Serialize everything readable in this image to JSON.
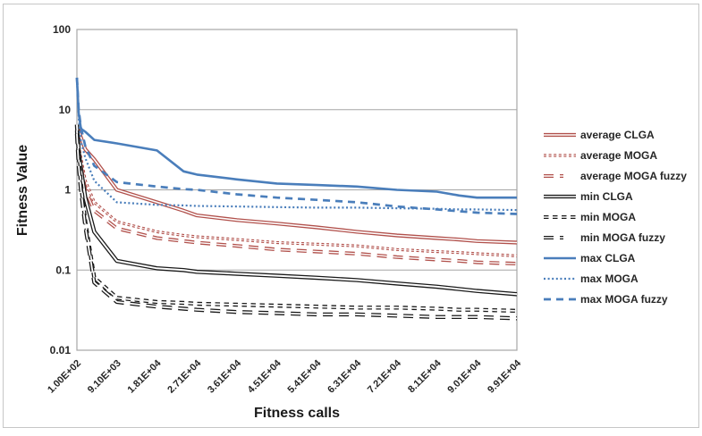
{
  "figure": {
    "background": "#ffffff",
    "border_color": "#c6c6c6"
  },
  "chart_data": {
    "type": "line",
    "title": "",
    "xlabel": "Fitness calls",
    "ylabel": "Fitness Value",
    "x_scale": "linear",
    "y_scale": "log",
    "xlim": [
      100,
      99100
    ],
    "ylim": [
      0.01,
      100
    ],
    "grid": "horizontal",
    "legend_position": "right",
    "axis_color": "#a6a6a6",
    "text_color": "#262626",
    "y_ticks": [
      {
        "value": 100,
        "label": "100"
      },
      {
        "value": 10,
        "label": "10"
      },
      {
        "value": 1,
        "label": "1"
      },
      {
        "value": 0.1,
        "label": "0.1"
      },
      {
        "value": 0.01,
        "label": "0.01"
      }
    ],
    "x_ticks": [
      {
        "value": 100,
        "label": "1.00E+02"
      },
      {
        "value": 9100,
        "label": "9.10E+03"
      },
      {
        "value": 18100,
        "label": "1.81E+04"
      },
      {
        "value": 27100,
        "label": "2.71E+04"
      },
      {
        "value": 36100,
        "label": "3.61E+04"
      },
      {
        "value": 45100,
        "label": "4.51E+04"
      },
      {
        "value": 54100,
        "label": "5.41E+04"
      },
      {
        "value": 63100,
        "label": "6.31E+04"
      },
      {
        "value": 72100,
        "label": "7.21E+04"
      },
      {
        "value": 81100,
        "label": "8.11E+04"
      },
      {
        "value": 90100,
        "label": "9.01E+04"
      },
      {
        "value": 99100,
        "label": "9.91E+04"
      }
    ],
    "x": [
      100,
      500,
      1000,
      2000,
      4000,
      9100,
      18100,
      24100,
      27100,
      36100,
      45100,
      54100,
      63100,
      72100,
      81100,
      86100,
      90100,
      99100
    ],
    "series": [
      {
        "name": "average CLGA",
        "color": "#b1504b",
        "line_style": "double-solid",
        "values": [
          6,
          5.5,
          4.5,
          3.2,
          2.4,
          1.0,
          0.7,
          0.55,
          0.48,
          0.42,
          0.38,
          0.34,
          0.3,
          0.27,
          0.25,
          0.24,
          0.23,
          0.22
        ]
      },
      {
        "name": "average MOGA",
        "color": "#b1504b",
        "line_style": "double-dotted",
        "values": [
          5.5,
          3.5,
          2.5,
          1.3,
          0.7,
          0.4,
          0.3,
          0.27,
          0.26,
          0.24,
          0.22,
          0.21,
          0.2,
          0.18,
          0.17,
          0.165,
          0.16,
          0.15
        ]
      },
      {
        "name": "average MOGA fuzzy",
        "color": "#b1504b",
        "line_style": "double-dashed",
        "values": [
          5,
          3,
          2,
          1.0,
          0.55,
          0.33,
          0.25,
          0.23,
          0.22,
          0.2,
          0.18,
          0.17,
          0.16,
          0.145,
          0.135,
          0.13,
          0.125,
          0.12
        ]
      },
      {
        "name": "min CLGA",
        "color": "#1a1a1a",
        "line_style": "double-solid",
        "values": [
          6.5,
          3,
          1.8,
          0.8,
          0.3,
          0.13,
          0.105,
          0.1,
          0.095,
          0.09,
          0.085,
          0.08,
          0.075,
          0.068,
          0.062,
          0.058,
          0.055,
          0.05
        ]
      },
      {
        "name": "min MOGA",
        "color": "#1a1a1a",
        "line_style": "double-dash-short",
        "values": [
          5.5,
          2.5,
          1.2,
          0.4,
          0.08,
          0.045,
          0.04,
          0.039,
          0.038,
          0.037,
          0.036,
          0.035,
          0.034,
          0.034,
          0.033,
          0.032,
          0.032,
          0.031
        ]
      },
      {
        "name": "min MOGA fuzzy",
        "color": "#1a1a1a",
        "line_style": "double-dashed",
        "values": [
          5,
          2,
          1.0,
          0.35,
          0.07,
          0.04,
          0.035,
          0.033,
          0.032,
          0.03,
          0.029,
          0.028,
          0.028,
          0.027,
          0.026,
          0.026,
          0.026,
          0.025
        ]
      },
      {
        "name": "max CLGA",
        "color": "#4a7ebb",
        "line_style": "solid",
        "values": [
          25,
          9,
          5.8,
          5.3,
          4.2,
          3.8,
          3.1,
          1.7,
          1.55,
          1.35,
          1.2,
          1.15,
          1.1,
          1.0,
          0.95,
          0.85,
          0.8,
          0.8
        ]
      },
      {
        "name": "max MOGA",
        "color": "#4a7ebb",
        "line_style": "dotted",
        "values": [
          25,
          8,
          4,
          2.5,
          1.3,
          0.7,
          0.65,
          0.64,
          0.63,
          0.62,
          0.61,
          0.6,
          0.6,
          0.59,
          0.58,
          0.57,
          0.57,
          0.56
        ]
      },
      {
        "name": "max MOGA fuzzy",
        "color": "#4a7ebb",
        "line_style": "dashed",
        "values": [
          25,
          10,
          6,
          3.5,
          2.0,
          1.25,
          1.1,
          1.02,
          1.0,
          0.88,
          0.8,
          0.75,
          0.7,
          0.62,
          0.57,
          0.54,
          0.52,
          0.5
        ]
      }
    ]
  }
}
